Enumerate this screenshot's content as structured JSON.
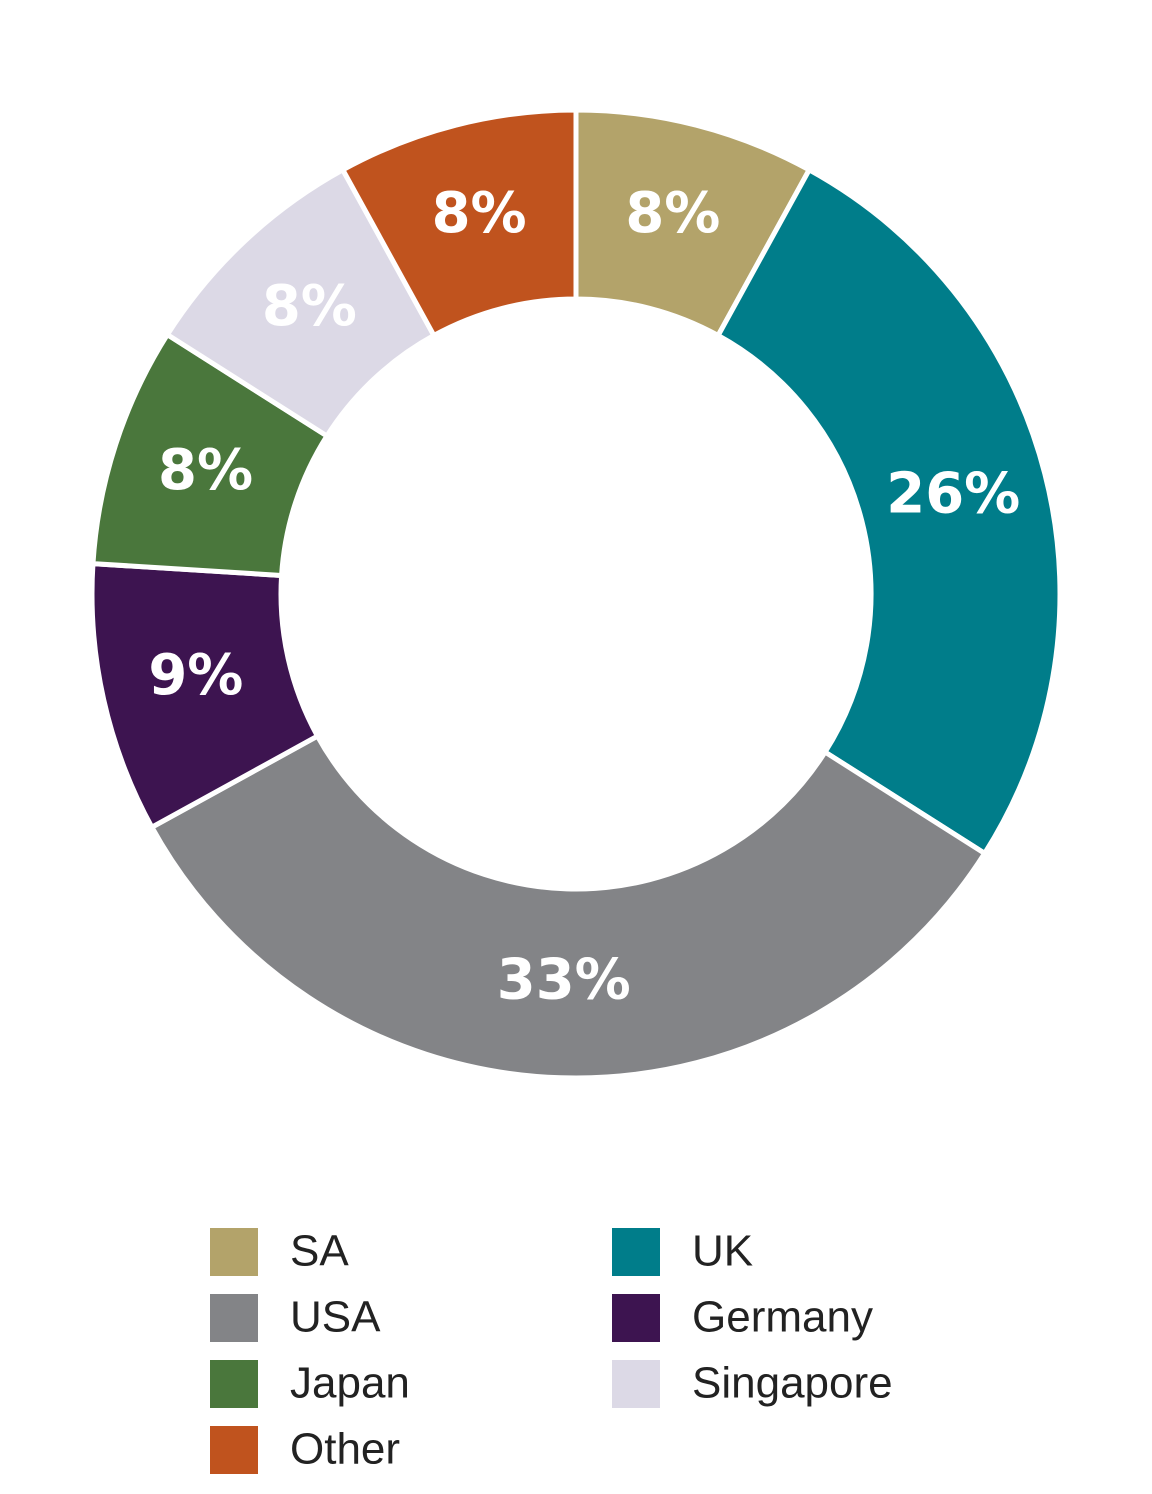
{
  "chart_data": {
    "type": "donut",
    "categories": [
      "SA",
      "UK",
      "USA",
      "Germany",
      "Japan",
      "Singapore",
      "Other"
    ],
    "values": [
      8,
      26,
      33,
      9,
      8,
      8,
      8
    ],
    "value_labels": [
      "8%",
      "26%",
      "33%",
      "9%",
      "8%",
      "8%",
      "8%"
    ],
    "colors": [
      "#b3a36a",
      "#007d8a",
      "#838487",
      "#3d1450",
      "#4a773c",
      "#dcd9e6",
      "#c0531e"
    ]
  }
}
